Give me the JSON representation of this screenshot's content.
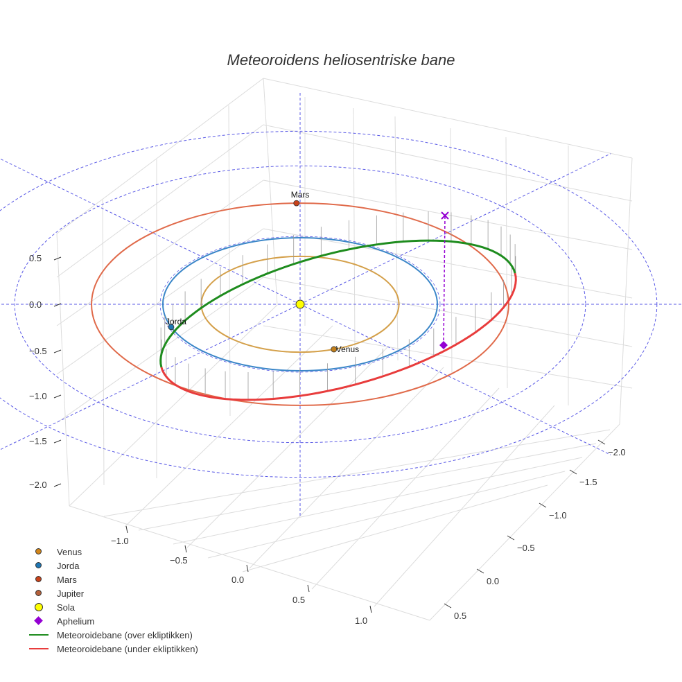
{
  "chart_data": {
    "type": "scatter3d",
    "title": "Meteoroidens heliosentriske bane",
    "axes": {
      "x_ticks": [
        "−1.0",
        "−0.5",
        "0.0",
        "0.5",
        "1.0"
      ],
      "y_ticks": [
        "−2.0",
        "−1.5",
        "−1.0",
        "−0.5",
        "0.0",
        "0.5"
      ],
      "z_ticks": [
        "0.5",
        "0.0",
        "−0.5",
        "−1.0",
        "−1.5",
        "−2.0"
      ],
      "grid": true
    },
    "orbits": [
      {
        "name": "Venus",
        "a": 0.72,
        "color": "#d4a04a"
      },
      {
        "name": "Jorda",
        "a": 1.0,
        "color": "#3a86c8"
      },
      {
        "name": "Mars",
        "a": 1.52,
        "color": "#e06a4a"
      }
    ],
    "planets": [
      {
        "name": "Venus",
        "label": "Venus",
        "angle_deg": -70,
        "r": 0.72,
        "color": "#c27f1a"
      },
      {
        "name": "Jorda",
        "label": "Jorda",
        "angle_deg": 200,
        "r": 1.0,
        "color": "#1f77b4"
      },
      {
        "name": "Mars",
        "label": "Mars",
        "angle_deg": 91,
        "r": 1.52,
        "color": "#c9421a"
      }
    ],
    "sun": {
      "name": "Sola",
      "color": "#ffff00"
    },
    "meteoroid": {
      "perihelion_deg": 180,
      "aphelion_deg": 0,
      "above_color": "#1e8c1e",
      "below_color": "#e83c3c"
    },
    "aphelion": {
      "name": "Aphelium",
      "color": "#9400d3"
    },
    "legend": [
      {
        "label": "Venus",
        "type": "dot",
        "color": "#d2861a"
      },
      {
        "label": "Jorda",
        "type": "dot",
        "color": "#1f77b4"
      },
      {
        "label": "Mars",
        "type": "dot",
        "color": "#c9421a"
      },
      {
        "label": "Jupiter",
        "type": "dot",
        "color": "#b5603a"
      },
      {
        "label": "Sola",
        "type": "sun",
        "color": "#ffff00"
      },
      {
        "label": "Aphelium",
        "type": "diamond",
        "color": "#9400d3"
      },
      {
        "label": "Meteoroidebane (over ekliptikken)",
        "type": "line",
        "color": "#1e8c1e"
      },
      {
        "label": "Meteoroidebane (under ekliptikken)",
        "type": "line",
        "color": "#e83c3c"
      }
    ]
  }
}
